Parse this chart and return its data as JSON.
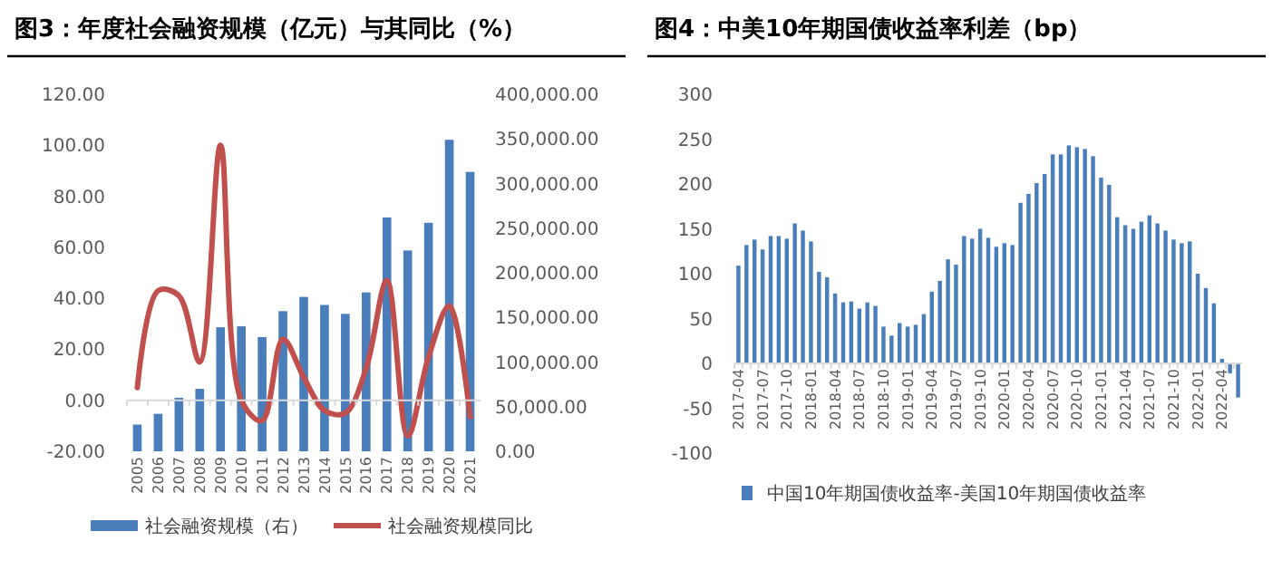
{
  "chart_data": [
    {
      "type": "bar",
      "title": "图3：年度社会融资规模（亿元）与其同比（%）",
      "categories": [
        "2005",
        "2006",
        "2007",
        "2008",
        "2009",
        "2010",
        "2011",
        "2012",
        "2013",
        "2014",
        "2015",
        "2016",
        "2017",
        "2018",
        "2019",
        "2020",
        "2021"
      ],
      "series": [
        {
          "name": "社会融资规模（右）",
          "color": "#4a7ebb",
          "axis": "y2",
          "values": [
            30000,
            42000,
            60000,
            70000,
            139000,
            140000,
            128000,
            157000,
            173000,
            164000,
            154000,
            178000,
            262000,
            225000,
            256000,
            349000,
            313000
          ]
        },
        {
          "name": "社会融资规模同比",
          "type": "line",
          "color": "#c0504d",
          "values": [
            5,
            43,
            41,
            15,
            100,
            0,
            -8,
            24,
            9,
            -4,
            -5,
            12.5,
            47,
            -14,
            17,
            37,
            -6.5
          ]
        }
      ],
      "ylim": [
        -20,
        120
      ],
      "yticks": [
        {
          "value": -20,
          "label": "-20.00"
        },
        {
          "value": 0,
          "label": "0.00"
        },
        {
          "value": 20,
          "label": "20.00"
        },
        {
          "value": 40,
          "label": "40.00"
        },
        {
          "value": 60,
          "label": "60.00"
        },
        {
          "value": 80,
          "label": "80.00"
        },
        {
          "value": 100,
          "label": "100.00"
        },
        {
          "value": 120,
          "label": "120.00"
        }
      ],
      "y2lim": [
        0,
        400000
      ],
      "y2ticks": [
        {
          "value": 0,
          "label": "0.00"
        },
        {
          "value": 50000,
          "label": "50,000.00"
        },
        {
          "value": 100000,
          "label": "100,000.00"
        },
        {
          "value": 150000,
          "label": "150,000.00"
        },
        {
          "value": 200000,
          "label": "200,000.00"
        },
        {
          "value": 250000,
          "label": "250,000.00"
        },
        {
          "value": 300000,
          "label": "300,000.00"
        },
        {
          "value": 350000,
          "label": "350,000.00"
        },
        {
          "value": 400000,
          "label": "400,000.00"
        }
      ],
      "legend": "bottom"
    },
    {
      "type": "bar",
      "title": "图4：中美10年期国债收益率利差（bp）",
      "categories": [
        "2017-04",
        null,
        null,
        "2017-07",
        null,
        null,
        "2017-10",
        null,
        null,
        "2018-01",
        null,
        null,
        "2018-04",
        null,
        null,
        "2018-07",
        null,
        null,
        "2018-10",
        null,
        null,
        "2019-01",
        null,
        null,
        "2019-04",
        null,
        null,
        "2019-07",
        null,
        null,
        "2019-10",
        null,
        null,
        "2020-01",
        null,
        null,
        "2020-04",
        null,
        null,
        "2020-07",
        null,
        null,
        "2020-10",
        null,
        null,
        "2021-01",
        null,
        null,
        "2021-04",
        null,
        null,
        "2021-07",
        null,
        null,
        "2021-10",
        null,
        null,
        "2022-01",
        null,
        null,
        "2022-04",
        null,
        null
      ],
      "series": [
        {
          "name": "中国10年期国债收益率-美国10年期国债收益率",
          "color": "#4a7ebb",
          "values": [
            109,
            132,
            138,
            127,
            142,
            142,
            139,
            156,
            148,
            136,
            102,
            96,
            78,
            68,
            69,
            61,
            68,
            64,
            41,
            31,
            45,
            41,
            43,
            55,
            80,
            92,
            116,
            110,
            142,
            139,
            150,
            140,
            130,
            134,
            132,
            179,
            189,
            201,
            211,
            233,
            233,
            243,
            241,
            239,
            231,
            207,
            199,
            163,
            154,
            150,
            158,
            165,
            156,
            148,
            138,
            134,
            136,
            100,
            84,
            67,
            5,
            -11,
            -38
          ]
        }
      ],
      "ylim": [
        -100,
        300
      ],
      "yticks": [
        -100,
        -50,
        0,
        50,
        100,
        150,
        200,
        250,
        300
      ],
      "legend": "bottom"
    }
  ]
}
